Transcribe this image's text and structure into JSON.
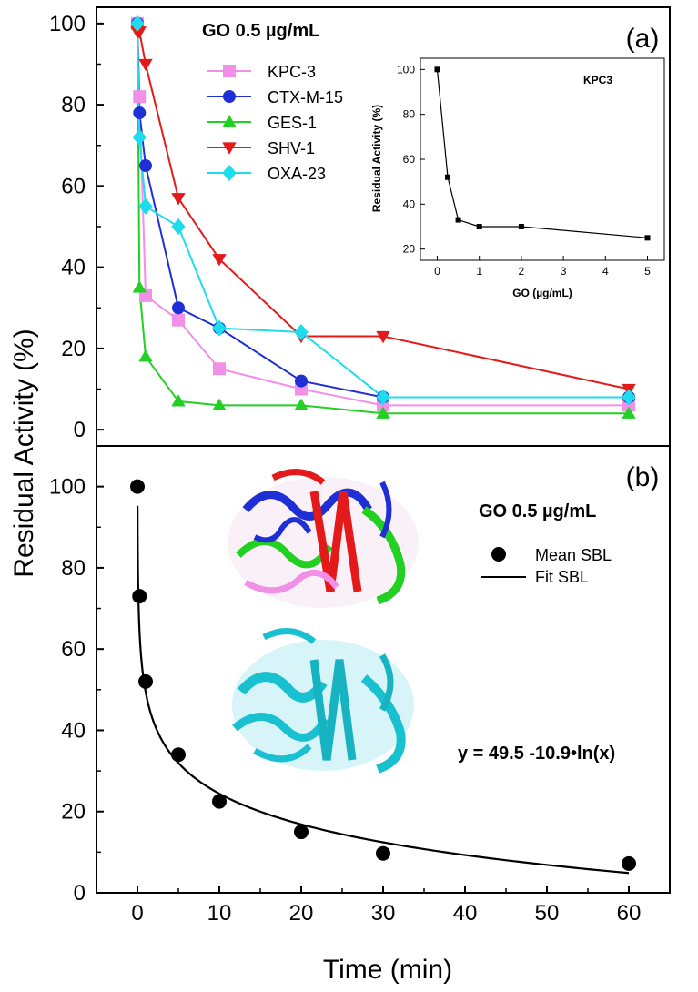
{
  "chart_data": [
    {
      "panel": "a",
      "type": "line",
      "panel_label": "(a)",
      "condition": "GO 0.5 µg/mL",
      "ylabel": "Residual Activity (%)",
      "xlabel": "Time (min)",
      "y_ticks": [
        "0",
        "20",
        "40",
        "60",
        "80",
        "100"
      ],
      "x": [
        0,
        0.25,
        1,
        5,
        10,
        20,
        30,
        60
      ],
      "xlim": [
        -5,
        65
      ],
      "ylim": [
        -4,
        104
      ],
      "legend_position": "top-center",
      "series": [
        {
          "name": "KPC-3",
          "color": "#f28fe8",
          "marker": "square",
          "values": [
            100,
            82,
            33,
            27,
            15,
            10,
            6,
            6
          ]
        },
        {
          "name": "CTX-M-15",
          "color": "#1f2fd6",
          "marker": "circle",
          "values": [
            100,
            78,
            65,
            30,
            25,
            12,
            8,
            8
          ]
        },
        {
          "name": "GES-1",
          "color": "#22d022",
          "marker": "triangle-up",
          "values": [
            100,
            35,
            18,
            7,
            6,
            6,
            4,
            4
          ]
        },
        {
          "name": "SHV-1",
          "color": "#e41a1a",
          "marker": "triangle-down",
          "values": [
            98,
            98,
            90,
            57,
            42,
            23,
            23,
            10
          ]
        },
        {
          "name": "OXA-23",
          "color": "#1fdcec",
          "marker": "diamond",
          "values": [
            100,
            72,
            55,
            50,
            25,
            24,
            8,
            8
          ]
        }
      ]
    },
    {
      "panel": "a-inset",
      "type": "line",
      "title": "KPC3",
      "ylabel": "Residual Activity (%)",
      "xlabel": "GO (µg/mL)",
      "x": [
        0,
        0.25,
        0.5,
        1,
        2,
        5
      ],
      "values": [
        100,
        52,
        33,
        30,
        30,
        25
      ],
      "x_ticks": [
        "0",
        "1",
        "2",
        "3",
        "4",
        "5"
      ],
      "y_ticks": [
        "20",
        "40",
        "60",
        "80",
        "100"
      ],
      "xlim": [
        -0.4,
        5.4
      ],
      "ylim": [
        15,
        105
      ]
    },
    {
      "panel": "b",
      "type": "scatter",
      "panel_label": "(b)",
      "condition": "GO 0.5 µg/mL",
      "ylabel": "Residual Activity (%)",
      "xlabel": "Time (min)",
      "x_ticks": [
        "0",
        "10",
        "20",
        "30",
        "40",
        "50",
        "60"
      ],
      "y_ticks": [
        "0",
        "20",
        "40",
        "60",
        "80",
        "100"
      ],
      "xlim": [
        -5,
        65
      ],
      "ylim": [
        0,
        110
      ],
      "legend": [
        "Mean SBL",
        "Fit SBL"
      ],
      "points": {
        "x": [
          0,
          0.25,
          1,
          5,
          10,
          20,
          30,
          60
        ],
        "y": [
          100,
          73,
          52,
          34,
          22.5,
          15,
          9.7,
          7.2
        ]
      },
      "fit": {
        "a": 49.5,
        "b": -10.9,
        "x_start": 0.015,
        "x_end": 60
      },
      "equation": "y = 49.5 -10.9•ln(x)"
    }
  ]
}
